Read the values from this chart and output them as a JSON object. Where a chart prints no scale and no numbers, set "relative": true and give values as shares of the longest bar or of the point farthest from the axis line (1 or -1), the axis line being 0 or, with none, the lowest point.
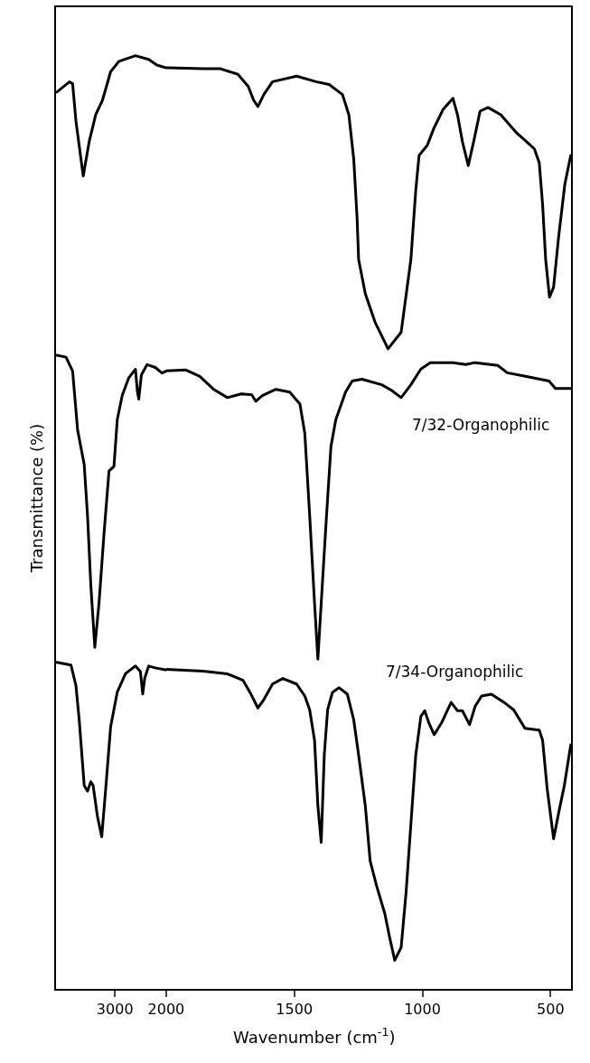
{
  "chart_data": [
    {
      "type": "line",
      "relative": true,
      "ylabel": "Transmittance (%)",
      "xlim": [
        4150,
        2000
      ],
      "xticks": [
        3000,
        2000
      ],
      "grid": false,
      "marker": "none",
      "line_style": "solid",
      "series": [
        {
          "color": "#000000",
          "x": [
            4135,
            3890,
            3826,
            3761,
            3619,
            3503,
            3374,
            3245,
            3084,
            2922,
            2600,
            2342,
            2181,
            2000
          ],
          "values": [
            0.961,
            0.972,
            0.97,
            0.93,
            0.871,
            0.908,
            0.937,
            0.952,
            0.983,
            0.994,
            1.0,
            0.996,
            0.99,
            0.987
          ]
        },
        {
          "color": "#000000",
          "x": [
            4135,
            3955,
            3826,
            3729,
            3600,
            3535,
            3471,
            3393,
            3310,
            3213,
            3116,
            3019,
            2955,
            2858,
            2729,
            2600,
            2561,
            2535,
            2484,
            2374,
            2213,
            2084,
            2000
          ],
          "values": [
            0.679,
            0.677,
            0.662,
            0.599,
            0.562,
            0.507,
            0.433,
            0.366,
            0.414,
            0.488,
            0.555,
            0.56,
            0.61,
            0.636,
            0.655,
            0.664,
            0.64,
            0.632,
            0.658,
            0.669,
            0.666,
            0.66,
            0.662
          ]
        },
        {
          "color": "#000000",
          "x": [
            4135,
            3858,
            3761,
            3697,
            3600,
            3535,
            3471,
            3426,
            3342,
            3258,
            3181,
            3084,
            2955,
            2793,
            2600,
            2503,
            2458,
            2419,
            2342,
            2213,
            2019,
            2000
          ],
          "values": [
            0.35,
            0.347,
            0.325,
            0.288,
            0.218,
            0.212,
            0.222,
            0.218,
            0.185,
            0.163,
            0.214,
            0.281,
            0.318,
            0.338,
            0.346,
            0.34,
            0.316,
            0.333,
            0.346,
            0.344,
            0.342,
            0.342
          ]
        }
      ]
    },
    {
      "type": "line",
      "relative": true,
      "xlabel": "Wavenumber (cm$^{-1}$)",
      "xlim": [
        2000,
        420
      ],
      "xticks": [
        1500,
        1000,
        500
      ],
      "grid": false,
      "marker": "none",
      "line_style": "solid",
      "series": [
        {
          "color": "#000000",
          "x": [
            2000,
            1990,
            1855,
            1788,
            1720,
            1680,
            1659,
            1642,
            1619,
            1585,
            1491,
            1415,
            1364,
            1312,
            1287,
            1268,
            1255,
            1249,
            1223,
            1185,
            1134,
            1083,
            1045,
            1026,
            1013,
            981,
            956,
            919,
            881,
            863,
            844,
            821,
            800,
            775,
            744,
            694,
            631,
            594,
            563,
            544,
            531,
            519,
            504,
            488,
            469,
            444,
            421
          ],
          "values": [
            1.0,
            1.0,
            0.999,
            0.999,
            0.993,
            0.98,
            0.965,
            0.958,
            0.971,
            0.985,
            0.991,
            0.985,
            0.982,
            0.971,
            0.949,
            0.901,
            0.837,
            0.792,
            0.755,
            0.724,
            0.695,
            0.713,
            0.792,
            0.867,
            0.905,
            0.916,
            0.934,
            0.955,
            0.967,
            0.949,
            0.92,
            0.894,
            0.92,
            0.953,
            0.957,
            0.949,
            0.929,
            0.92,
            0.912,
            0.897,
            0.852,
            0.792,
            0.751,
            0.762,
            0.815,
            0.874,
            0.905
          ]
        },
        {
          "name": "7/32-Organophilic",
          "color": "#000000",
          "x": [
            2000,
            1923,
            1869,
            1815,
            1761,
            1707,
            1666,
            1650,
            1626,
            1572,
            1518,
            1478,
            1459,
            1440,
            1421,
            1408,
            1395,
            1376,
            1357,
            1338,
            1300,
            1274,
            1236,
            1159,
            1121,
            1083,
            1045,
            1006,
            969,
            881,
            831,
            794,
            706,
            669,
            594,
            506,
            481,
            421
          ],
          "values": [
            0.671,
            0.672,
            0.665,
            0.651,
            0.642,
            0.646,
            0.645,
            0.638,
            0.644,
            0.651,
            0.648,
            0.635,
            0.603,
            0.514,
            0.419,
            0.358,
            0.419,
            0.506,
            0.589,
            0.618,
            0.648,
            0.66,
            0.662,
            0.656,
            0.65,
            0.642,
            0.656,
            0.673,
            0.68,
            0.68,
            0.678,
            0.68,
            0.677,
            0.669,
            0.665,
            0.66,
            0.652,
            0.652
          ]
        },
        {
          "name": "7/34-Organophilic",
          "color": "#000000",
          "x": [
            2000,
            1855,
            1761,
            1700,
            1673,
            1642,
            1619,
            1585,
            1545,
            1491,
            1459,
            1440,
            1421,
            1408,
            1395,
            1383,
            1370,
            1351,
            1325,
            1293,
            1268,
            1249,
            1223,
            1204,
            1179,
            1147,
            1128,
            1108,
            1083,
            1064,
            1045,
            1026,
            1006,
            991,
            975,
            954,
            925,
            888,
            863,
            844,
            816,
            794,
            769,
            731,
            681,
            644,
            600,
            544,
            531,
            513,
            488,
            469,
            446,
            421
          ],
          "values": [
            0.347,
            0.345,
            0.342,
            0.335,
            0.322,
            0.305,
            0.314,
            0.331,
            0.337,
            0.331,
            0.318,
            0.303,
            0.27,
            0.199,
            0.159,
            0.254,
            0.303,
            0.322,
            0.327,
            0.32,
            0.292,
            0.254,
            0.199,
            0.139,
            0.112,
            0.082,
            0.056,
            0.031,
            0.045,
            0.104,
            0.179,
            0.254,
            0.296,
            0.302,
            0.289,
            0.276,
            0.289,
            0.311,
            0.302,
            0.302,
            0.287,
            0.307,
            0.318,
            0.32,
            0.311,
            0.303,
            0.283,
            0.281,
            0.27,
            0.217,
            0.163,
            0.19,
            0.221,
            0.265
          ]
        }
      ]
    }
  ]
}
